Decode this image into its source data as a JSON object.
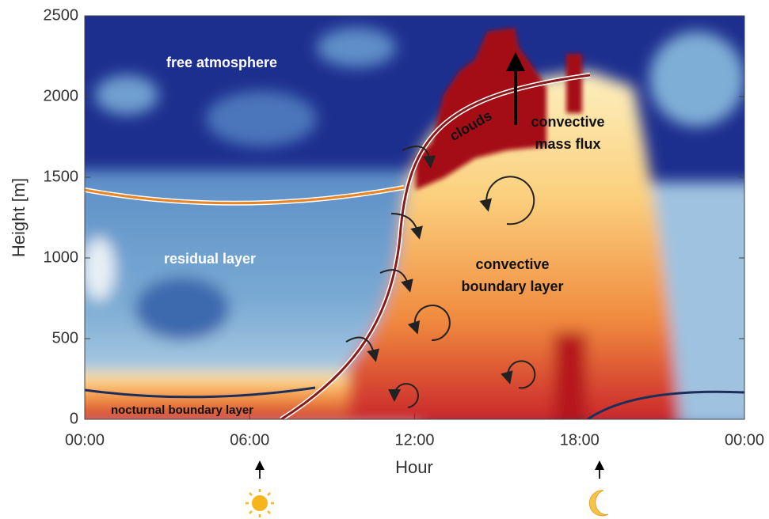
{
  "chart_data": {
    "type": "heatmap",
    "x_label": "Hour",
    "y_label": "Height [m]",
    "xlim": [
      0,
      24
    ],
    "ylim": [
      0,
      2500
    ],
    "xticks": [
      {
        "value": 0,
        "label": "00:00"
      },
      {
        "value": 6,
        "label": "06:00"
      },
      {
        "value": 12,
        "label": "12:00"
      },
      {
        "value": 18,
        "label": "18:00"
      },
      {
        "value": 24,
        "label": "00:00"
      }
    ],
    "yticks": [
      0,
      500,
      1000,
      1500,
      2000,
      2500
    ],
    "annotations": {
      "free_atmosphere": "free atmosphere",
      "residual_layer": "residual layer",
      "nocturnal_boundary_layer": "nocturnal boundary layer",
      "clouds": "clouds",
      "convective_mass_flux": [
        "convective",
        "mass flux"
      ],
      "convective_boundary_layer": [
        "convective",
        "boundary layer"
      ]
    }
  }
}
